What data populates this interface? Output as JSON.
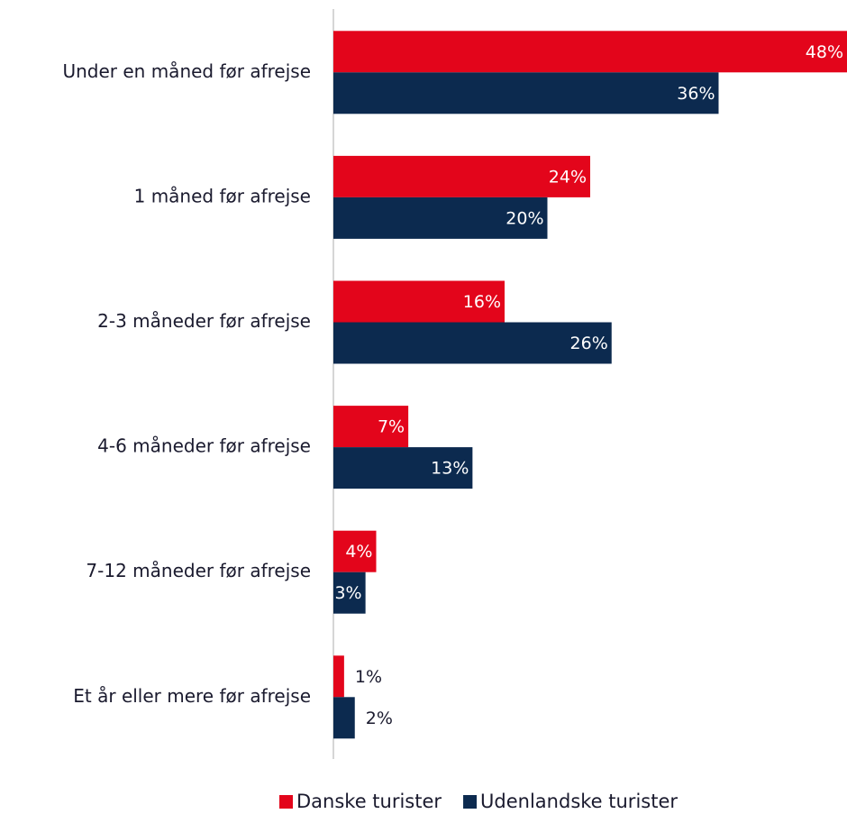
{
  "chart_data": {
    "type": "hbar",
    "categories": [
      "Under en måned før afrejse",
      "1 måned før afrejse",
      "2-3 måneder før afrejse",
      "4-6 måneder før afrejse",
      "7-12 måneder før afrejse",
      "Et år eller mere før afrejse"
    ],
    "series": [
      {
        "name": "Danske turister",
        "color": "#e3051b",
        "values": [
          48,
          24,
          16,
          7,
          4,
          1
        ],
        "value_labels": [
          "48%",
          "24%",
          "16%",
          "7%",
          "4%",
          "1%"
        ]
      },
      {
        "name": "Udenlandske turister",
        "color": "#0c2a4f",
        "values": [
          36,
          20,
          26,
          13,
          3,
          2
        ],
        "value_labels": [
          "36%",
          "20%",
          "26%",
          "13%",
          "3%",
          "2%"
        ]
      }
    ],
    "xlim": [
      0,
      48
    ],
    "legend": "bottom"
  }
}
